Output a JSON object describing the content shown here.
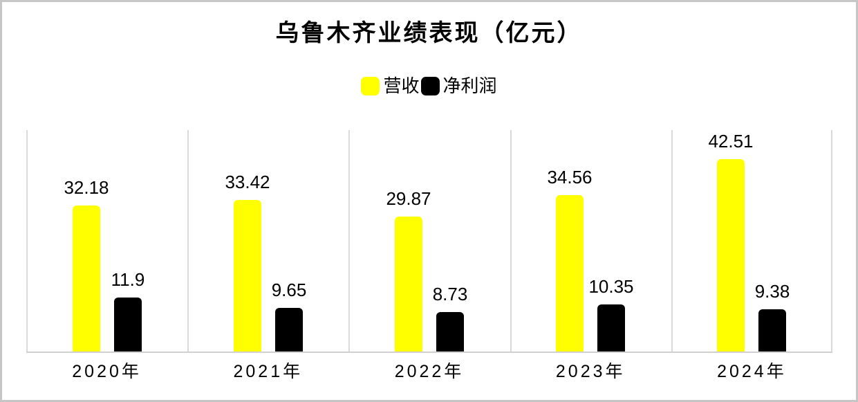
{
  "window": {
    "background": "#ffffff",
    "border_color": "#c6c6c6"
  },
  "header": {
    "title": "乌鲁木齐业绩表现（亿元）"
  },
  "legend": {
    "items": [
      {
        "label": "营收",
        "color": "#ffff00"
      },
      {
        "label": "净利润",
        "color": "#000000"
      }
    ]
  },
  "chart_data": {
    "type": "bar",
    "title": "乌鲁木齐业绩表现（亿元）",
    "categories": [
      "2020年",
      "2021年",
      "2022年",
      "2023年",
      "2024年"
    ],
    "series": [
      {
        "name": "营收",
        "slug": "revenue",
        "color": "#ffff00",
        "values": [
          32.18,
          33.42,
          29.87,
          34.56,
          42.51
        ]
      },
      {
        "name": "净利润",
        "slug": "net-profit",
        "color": "#000000",
        "values": [
          11.9,
          9.65,
          8.73,
          10.35,
          9.38
        ]
      }
    ],
    "xlabel": "",
    "ylabel": "",
    "ylim": [
      0,
      48.9
    ],
    "y_axis_visible": false,
    "value_labels": true,
    "grid": {
      "vertical_category_boundaries": true,
      "horizontal": false,
      "color": "#d9d9d9"
    },
    "axis_line_color": "#d0d0d0",
    "legend_position": "top-center"
  }
}
